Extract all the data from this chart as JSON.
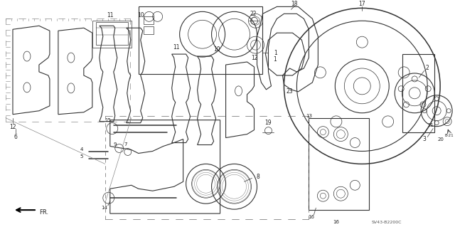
{
  "background_color": "#ffffff",
  "diagram_code": "SV43-B2200C",
  "figsize": [
    6.4,
    3.19
  ],
  "dpi": 100,
  "line_color": "#333333",
  "label_color": "#222222",
  "label_fs": 5.5,
  "small_fs": 5.0,
  "lw_main": 0.8,
  "lw_thin": 0.5,
  "lw_thick": 1.1
}
